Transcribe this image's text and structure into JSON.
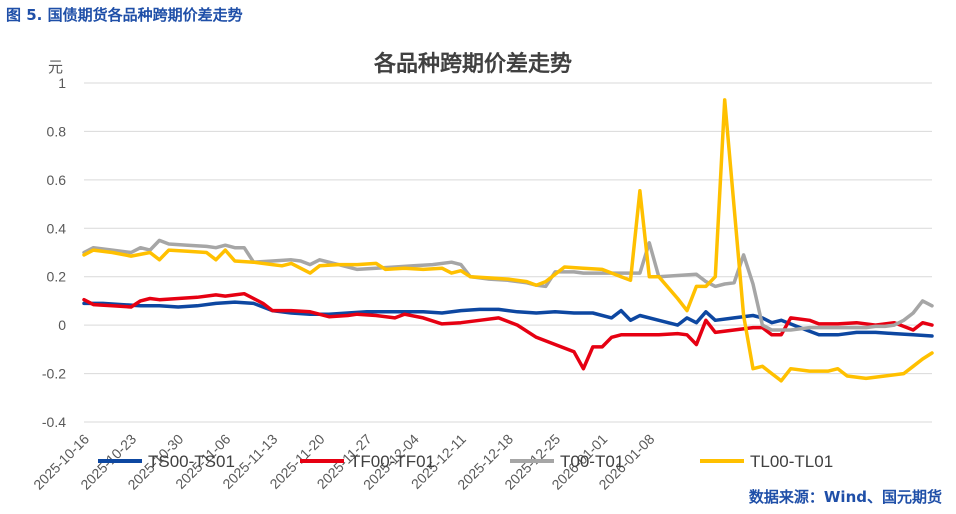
{
  "figure_caption": "图 5. 国债期货各品种跨期价差走势",
  "source_note": "数据来源：Wind、国元期货",
  "chart_data": {
    "type": "line",
    "title": "各品种跨期价差走势",
    "ylabel": "元",
    "xlabel": "",
    "ylim": [
      -0.4,
      1.0
    ],
    "yticks": [
      {
        "value": 1.0,
        "label": "1"
      },
      {
        "value": 0.8,
        "label": "0.8"
      },
      {
        "value": 0.6,
        "label": "0.6"
      },
      {
        "value": 0.4,
        "label": "0.4"
      },
      {
        "value": 0.2,
        "label": "0.2"
      },
      {
        "value": 0.0,
        "label": "0"
      },
      {
        "value": -0.2,
        "label": "-0.2"
      },
      {
        "value": -0.4,
        "label": "-0.4"
      }
    ],
    "xticks": [
      {
        "index": 0,
        "label": "2025-10-16"
      },
      {
        "index": 5,
        "label": "2025-10-23"
      },
      {
        "index": 10,
        "label": "2025-10-30"
      },
      {
        "index": 15,
        "label": "2025-11-06"
      },
      {
        "index": 20,
        "label": "2025-11-13"
      },
      {
        "index": 25,
        "label": "2025-11-20"
      },
      {
        "index": 30,
        "label": "2025-11-27"
      },
      {
        "index": 35,
        "label": "2025-12-04"
      },
      {
        "index": 40,
        "label": "2025-12-11"
      },
      {
        "index": 45,
        "label": "2025-12-18"
      },
      {
        "index": 50,
        "label": "2025-12-25"
      },
      {
        "index": 55,
        "label": "2026-01-01"
      },
      {
        "index": 60,
        "label": "2026-01-08"
      }
    ],
    "n_points": 91,
    "legend_position": "bottom",
    "gridlines": "horizontal",
    "series": [
      {
        "name": "TS00-TS01",
        "color": "#0d47a1",
        "points": [
          [
            0,
            0.09
          ],
          [
            2,
            0.09
          ],
          [
            4,
            0.085
          ],
          [
            6,
            0.08
          ],
          [
            8,
            0.08
          ],
          [
            10,
            0.075
          ],
          [
            12,
            0.08
          ],
          [
            14,
            0.09
          ],
          [
            16,
            0.095
          ],
          [
            18,
            0.09
          ],
          [
            20,
            0.06
          ],
          [
            22,
            0.05
          ],
          [
            24,
            0.045
          ],
          [
            26,
            0.045
          ],
          [
            28,
            0.05
          ],
          [
            30,
            0.055
          ],
          [
            32,
            0.055
          ],
          [
            34,
            0.055
          ],
          [
            36,
            0.055
          ],
          [
            38,
            0.05
          ],
          [
            40,
            0.06
          ],
          [
            42,
            0.065
          ],
          [
            44,
            0.065
          ],
          [
            46,
            0.055
          ],
          [
            48,
            0.05
          ],
          [
            50,
            0.055
          ],
          [
            52,
            0.05
          ],
          [
            54,
            0.05
          ],
          [
            56,
            0.03
          ],
          [
            57,
            0.06
          ],
          [
            58,
            0.02
          ],
          [
            59,
            0.04
          ],
          [
            61,
            0.02
          ],
          [
            63,
            0.0
          ],
          [
            64,
            0.03
          ],
          [
            65,
            0.01
          ],
          [
            66,
            0.055
          ],
          [
            67,
            0.02
          ],
          [
            69,
            0.03
          ],
          [
            71,
            0.04
          ],
          [
            72,
            0.03
          ],
          [
            73,
            0.01
          ],
          [
            74,
            0.02
          ],
          [
            76,
            -0.01
          ],
          [
            78,
            -0.04
          ],
          [
            80,
            -0.04
          ],
          [
            82,
            -0.03
          ],
          [
            84,
            -0.03
          ],
          [
            86,
            -0.035
          ],
          [
            88,
            -0.04
          ],
          [
            90,
            -0.045
          ]
        ]
      },
      {
        "name": "TF00-TF01",
        "color": "#e60012",
        "points": [
          [
            0,
            0.105
          ],
          [
            1,
            0.085
          ],
          [
            3,
            0.08
          ],
          [
            5,
            0.075
          ],
          [
            6,
            0.1
          ],
          [
            7,
            0.11
          ],
          [
            8,
            0.105
          ],
          [
            10,
            0.11
          ],
          [
            12,
            0.115
          ],
          [
            14,
            0.125
          ],
          [
            15,
            0.12
          ],
          [
            16,
            0.125
          ],
          [
            17,
            0.13
          ],
          [
            18,
            0.11
          ],
          [
            19,
            0.09
          ],
          [
            20,
            0.06
          ],
          [
            22,
            0.06
          ],
          [
            24,
            0.055
          ],
          [
            26,
            0.035
          ],
          [
            28,
            0.04
          ],
          [
            29,
            0.045
          ],
          [
            31,
            0.04
          ],
          [
            33,
            0.03
          ],
          [
            34,
            0.045
          ],
          [
            36,
            0.03
          ],
          [
            38,
            0.005
          ],
          [
            40,
            0.01
          ],
          [
            42,
            0.02
          ],
          [
            44,
            0.03
          ],
          [
            46,
            0.0
          ],
          [
            48,
            -0.05
          ],
          [
            50,
            -0.08
          ],
          [
            52,
            -0.11
          ],
          [
            53,
            -0.18
          ],
          [
            54,
            -0.09
          ],
          [
            55,
            -0.09
          ],
          [
            56,
            -0.05
          ],
          [
            57,
            -0.04
          ],
          [
            59,
            -0.04
          ],
          [
            61,
            -0.04
          ],
          [
            63,
            -0.035
          ],
          [
            64,
            -0.04
          ],
          [
            65,
            -0.08
          ],
          [
            66,
            0.02
          ],
          [
            67,
            -0.03
          ],
          [
            69,
            -0.02
          ],
          [
            71,
            -0.01
          ],
          [
            72,
            -0.01
          ],
          [
            73,
            -0.04
          ],
          [
            74,
            -0.04
          ],
          [
            75,
            0.03
          ],
          [
            77,
            0.02
          ],
          [
            78,
            0.005
          ],
          [
            80,
            0.005
          ],
          [
            82,
            0.01
          ],
          [
            84,
            0.0
          ],
          [
            86,
            0.01
          ],
          [
            88,
            -0.02
          ],
          [
            89,
            0.01
          ],
          [
            90,
            0.0
          ]
        ]
      },
      {
        "name": "T00-T01",
        "color": "#a6a6a6",
        "points": [
          [
            0,
            0.3
          ],
          [
            1,
            0.32
          ],
          [
            3,
            0.31
          ],
          [
            5,
            0.3
          ],
          [
            6,
            0.32
          ],
          [
            7,
            0.31
          ],
          [
            8,
            0.35
          ],
          [
            9,
            0.335
          ],
          [
            11,
            0.33
          ],
          [
            13,
            0.325
          ],
          [
            14,
            0.32
          ],
          [
            15,
            0.33
          ],
          [
            16,
            0.32
          ],
          [
            17,
            0.32
          ],
          [
            18,
            0.26
          ],
          [
            20,
            0.265
          ],
          [
            22,
            0.27
          ],
          [
            23,
            0.265
          ],
          [
            24,
            0.25
          ],
          [
            25,
            0.27
          ],
          [
            27,
            0.25
          ],
          [
            29,
            0.23
          ],
          [
            31,
            0.235
          ],
          [
            33,
            0.24
          ],
          [
            35,
            0.245
          ],
          [
            37,
            0.25
          ],
          [
            39,
            0.26
          ],
          [
            40,
            0.25
          ],
          [
            41,
            0.2
          ],
          [
            43,
            0.19
          ],
          [
            45,
            0.185
          ],
          [
            47,
            0.175
          ],
          [
            48,
            0.165
          ],
          [
            49,
            0.16
          ],
          [
            50,
            0.22
          ],
          [
            52,
            0.22
          ],
          [
            53,
            0.215
          ],
          [
            55,
            0.215
          ],
          [
            57,
            0.215
          ],
          [
            58,
            0.215
          ],
          [
            59,
            0.215
          ],
          [
            60,
            0.34
          ],
          [
            61,
            0.2
          ],
          [
            63,
            0.205
          ],
          [
            65,
            0.21
          ],
          [
            66,
            0.18
          ],
          [
            67,
            0.16
          ],
          [
            68,
            0.17
          ],
          [
            69,
            0.175
          ],
          [
            70,
            0.29
          ],
          [
            71,
            0.17
          ],
          [
            72,
            -0.0
          ],
          [
            73,
            -0.02
          ],
          [
            75,
            -0.02
          ],
          [
            77,
            -0.01
          ],
          [
            79,
            -0.01
          ],
          [
            81,
            -0.01
          ],
          [
            82,
            -0.01
          ],
          [
            83,
            -0.01
          ],
          [
            84,
            -0.005
          ],
          [
            85,
            -0.005
          ],
          [
            86,
            0.0
          ],
          [
            87,
            0.02
          ],
          [
            88,
            0.05
          ],
          [
            89,
            0.1
          ],
          [
            90,
            0.08
          ]
        ]
      },
      {
        "name": "TL00-TL01",
        "color": "#ffc000",
        "points": [
          [
            0,
            0.29
          ],
          [
            1,
            0.31
          ],
          [
            3,
            0.3
          ],
          [
            5,
            0.285
          ],
          [
            7,
            0.3
          ],
          [
            8,
            0.27
          ],
          [
            9,
            0.31
          ],
          [
            11,
            0.305
          ],
          [
            13,
            0.3
          ],
          [
            14,
            0.27
          ],
          [
            15,
            0.31
          ],
          [
            16,
            0.265
          ],
          [
            18,
            0.26
          ],
          [
            20,
            0.25
          ],
          [
            21,
            0.245
          ],
          [
            22,
            0.255
          ],
          [
            24,
            0.215
          ],
          [
            25,
            0.245
          ],
          [
            27,
            0.25
          ],
          [
            29,
            0.25
          ],
          [
            31,
            0.255
          ],
          [
            32,
            0.23
          ],
          [
            34,
            0.235
          ],
          [
            36,
            0.23
          ],
          [
            38,
            0.235
          ],
          [
            39,
            0.215
          ],
          [
            40,
            0.225
          ],
          [
            41,
            0.2
          ],
          [
            43,
            0.195
          ],
          [
            45,
            0.19
          ],
          [
            47,
            0.18
          ],
          [
            48,
            0.165
          ],
          [
            49,
            0.18
          ],
          [
            51,
            0.24
          ],
          [
            53,
            0.235
          ],
          [
            55,
            0.23
          ],
          [
            57,
            0.2
          ],
          [
            58,
            0.185
          ],
          [
            59,
            0.555
          ],
          [
            60,
            0.2
          ],
          [
            61,
            0.2
          ],
          [
            63,
            0.11
          ],
          [
            64,
            0.06
          ],
          [
            65,
            0.16
          ],
          [
            66,
            0.16
          ],
          [
            67,
            0.2
          ],
          [
            68,
            0.93
          ],
          [
            70,
            0.04
          ],
          [
            71,
            -0.18
          ],
          [
            72,
            -0.17
          ],
          [
            73,
            -0.2
          ],
          [
            74,
            -0.23
          ],
          [
            75,
            -0.18
          ],
          [
            77,
            -0.19
          ],
          [
            79,
            -0.19
          ],
          [
            80,
            -0.18
          ],
          [
            81,
            -0.21
          ],
          [
            83,
            -0.22
          ],
          [
            85,
            -0.21
          ],
          [
            87,
            -0.2
          ],
          [
            88,
            -0.17
          ],
          [
            89,
            -0.14
          ],
          [
            90,
            -0.115
          ]
        ]
      }
    ]
  }
}
